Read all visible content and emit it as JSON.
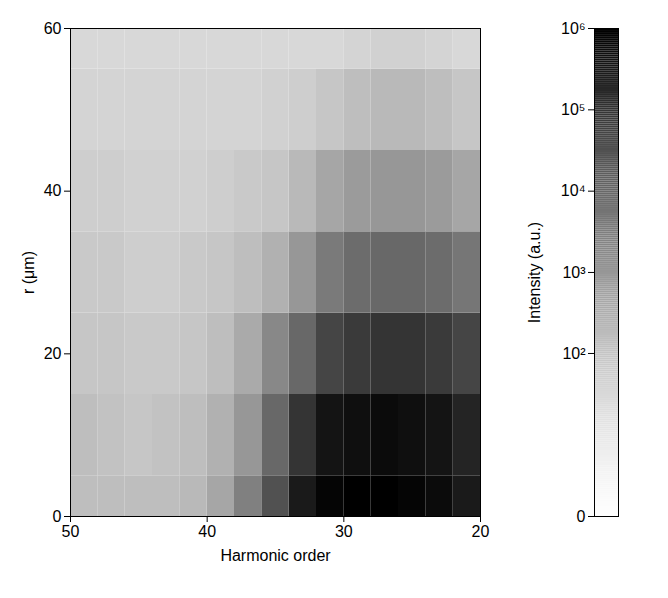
{
  "chart_data": {
    "type": "heatmap",
    "x_label": "Harmonic order",
    "y_label": "r (μm)",
    "x": [
      21,
      23,
      25,
      27,
      29,
      31,
      33,
      35,
      37,
      39,
      41,
      43,
      45,
      47,
      49
    ],
    "y": [
      0,
      10,
      20,
      30,
      40,
      50,
      60
    ],
    "values": [
      [
        300000,
        600000,
        800000,
        1000000,
        1000000,
        800000,
        300000,
        30000,
        3000,
        500,
        200,
        150,
        150,
        150,
        150
      ],
      [
        200000,
        400000,
        500000,
        600000,
        500000,
        400000,
        100000,
        10000,
        1000,
        300,
        150,
        120,
        100,
        120,
        150
      ],
      [
        50000,
        80000,
        100000,
        100000,
        80000,
        50000,
        10000,
        2000,
        400,
        150,
        100,
        80,
        80,
        100,
        100
      ],
      [
        5000,
        8000,
        10000,
        10000,
        8000,
        4000,
        1000,
        300,
        150,
        100,
        80,
        60,
        60,
        80,
        80
      ],
      [
        500,
        800,
        1000,
        1000,
        800,
        500,
        200,
        100,
        80,
        60,
        50,
        50,
        50,
        60,
        60
      ],
      [
        100,
        150,
        200,
        200,
        150,
        100,
        60,
        50,
        40,
        40,
        40,
        40,
        40,
        40,
        40
      ],
      [
        30,
        40,
        50,
        50,
        40,
        30,
        30,
        30,
        30,
        30,
        30,
        30,
        30,
        30,
        30
      ]
    ],
    "xlim": [
      50,
      20
    ],
    "xticks": [
      20,
      30,
      40,
      50
    ],
    "ylim": [
      0,
      60
    ],
    "yticks": [
      0,
      20,
      40,
      60
    ],
    "colorbar": {
      "label": "Intensity (a.u.)",
      "lim": [
        0,
        1000000
      ],
      "ticks": [
        {
          "value": 0,
          "label": "0"
        },
        {
          "value": 100,
          "label": "10²"
        },
        {
          "value": 1000,
          "label": "10³"
        },
        {
          "value": 10000,
          "label": "10⁴"
        },
        {
          "value": 100000,
          "label": "10⁵"
        },
        {
          "value": 1000000,
          "label": "10⁶"
        }
      ]
    },
    "log": true,
    "color": "Greys"
  }
}
